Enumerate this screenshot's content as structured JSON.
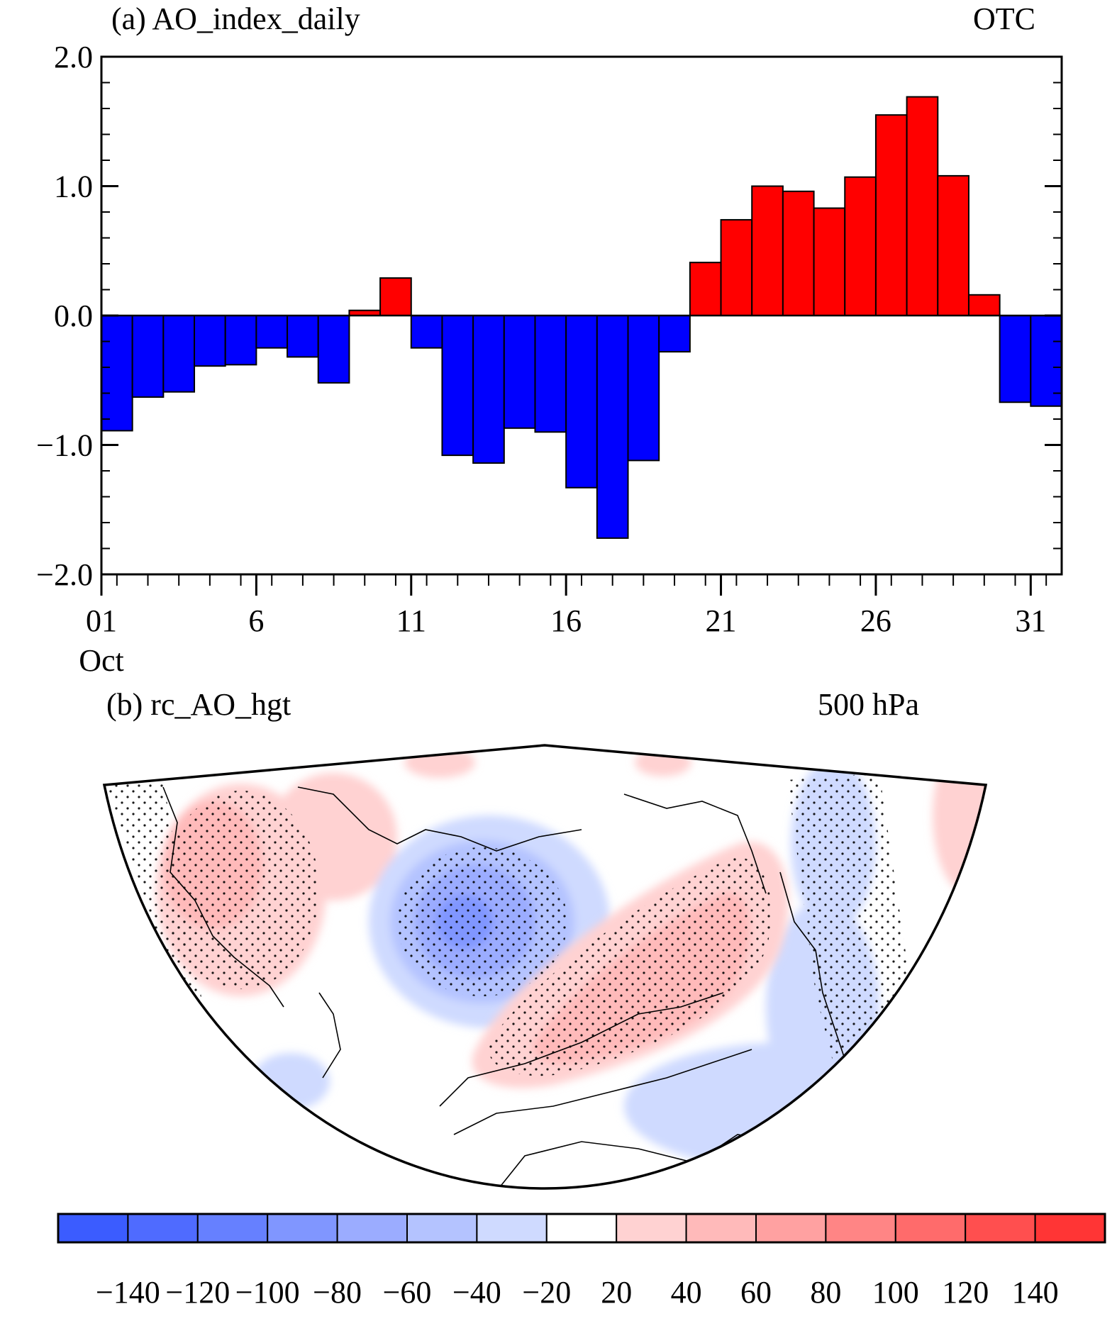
{
  "panel_a": {
    "title": "(a) AO_index_daily",
    "right_label": "OTC"
  },
  "panel_b": {
    "title": "(b) rc_AO_hgt",
    "right_label": "500 hPa"
  },
  "colors": {
    "positive_bar": "#ff0000",
    "negative_bar": "#0000ff"
  },
  "chart_data": [
    {
      "type": "bar",
      "title": "(a) AO_index_daily",
      "x": [
        1,
        2,
        3,
        4,
        5,
        6,
        7,
        8,
        9,
        10,
        11,
        12,
        13,
        14,
        15,
        16,
        17,
        18,
        19,
        20,
        21,
        22,
        23,
        24,
        25,
        26,
        27,
        28,
        29,
        30,
        31
      ],
      "values": [
        -0.89,
        -0.63,
        -0.59,
        -0.39,
        -0.38,
        -0.25,
        -0.32,
        -0.52,
        0.04,
        0.29,
        -0.25,
        -1.08,
        -1.14,
        -0.87,
        -0.9,
        -1.33,
        -1.72,
        -1.12,
        -0.28,
        0.41,
        0.74,
        1.0,
        0.96,
        0.83,
        1.07,
        1.55,
        1.69,
        1.08,
        0.16,
        -0.67,
        -0.7
      ],
      "ylim": [
        -2.0,
        2.0
      ],
      "yticks": [
        -2.0,
        -1.0,
        0.0,
        1.0,
        2.0
      ],
      "ytick_labels": [
        "−2.0",
        "−1.0",
        "0.0",
        "1.0",
        "2.0"
      ],
      "xlim": [
        1,
        32
      ],
      "xticks": [
        1,
        6,
        11,
        16,
        21,
        26,
        31
      ],
      "xtick_labels": [
        "01",
        "6",
        "11",
        "16",
        "21",
        "26",
        "31"
      ],
      "x_sublabel": "Oct",
      "grid": false
    }
  ],
  "colorbar": {
    "colors": [
      "#3b5cff",
      "#4f6bff",
      "#6680ff",
      "#8096ff",
      "#9bacff",
      "#b4c3ff",
      "#cfdaff",
      "#ffffff",
      "#ffd2d2",
      "#ffbaba",
      "#ffa1a1",
      "#ff8585",
      "#ff6b6b",
      "#ff4f4f",
      "#ff3535"
    ],
    "labels": [
      "−140",
      "−120",
      "−100",
      "−80",
      "−60",
      "−40",
      "−20",
      "20",
      "40",
      "60",
      "80",
      "100",
      "120",
      "140"
    ]
  }
}
